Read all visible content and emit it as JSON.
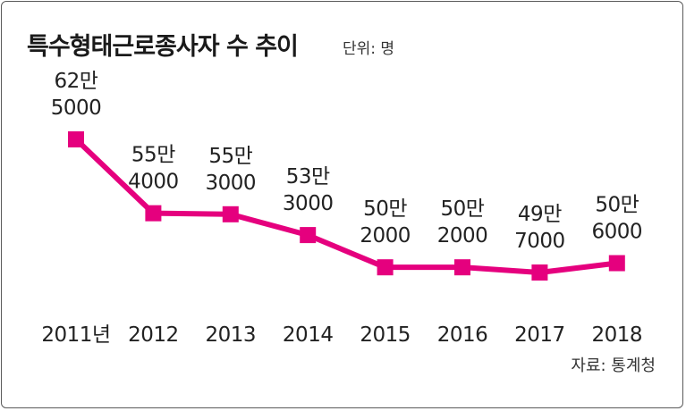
{
  "header": {
    "title": "특수형태근로종사자 수 추이",
    "unit": "단위: 명"
  },
  "footer": {
    "source": "자료: 통계청"
  },
  "colors": {
    "series": "#e5007e",
    "text": "#222222",
    "border": "#5a5a5a"
  },
  "chart_data": {
    "type": "line",
    "title": "특수형태근로종사자 수 추이",
    "ylabel": "",
    "xlabel": "",
    "unit": "단위: 명",
    "grid": false,
    "categories": [
      "2011년",
      "2012",
      "2013",
      "2014",
      "2015",
      "2016",
      "2017",
      "2018"
    ],
    "values": [
      625000,
      554000,
      553000,
      533000,
      502000,
      502000,
      497000,
      506000
    ],
    "data_labels": [
      [
        "62만",
        "5000"
      ],
      [
        "55만",
        "4000"
      ],
      [
        "55만",
        "3000"
      ],
      [
        "53만",
        "3000"
      ],
      [
        "50만",
        "2000"
      ],
      [
        "50만",
        "2000"
      ],
      [
        "49만",
        "7000"
      ],
      [
        "50만",
        "6000"
      ]
    ]
  }
}
